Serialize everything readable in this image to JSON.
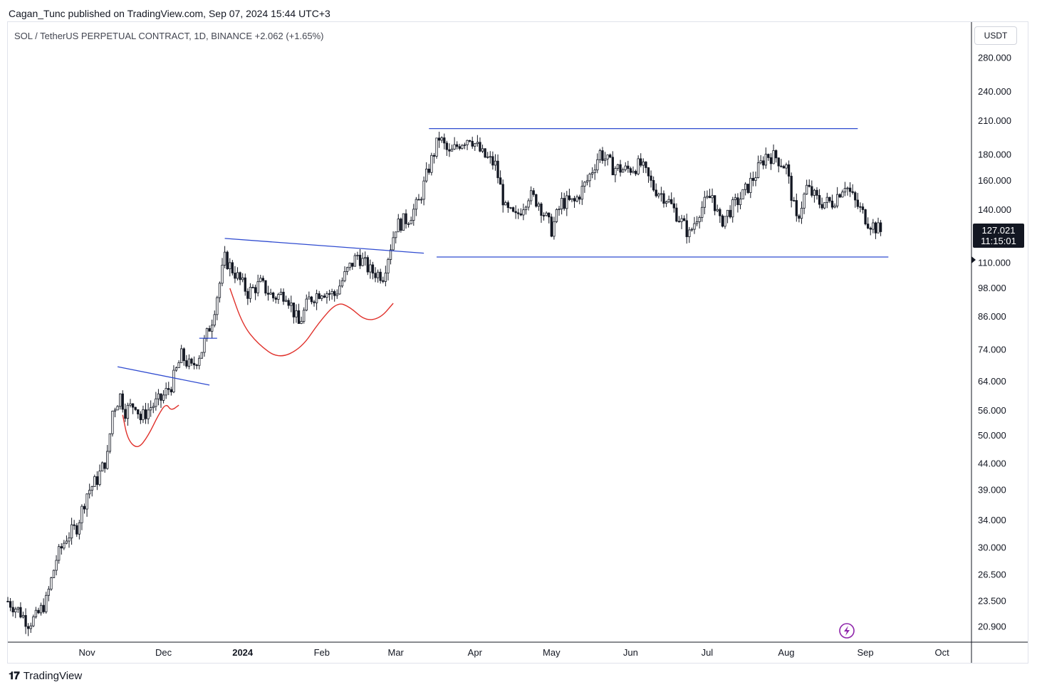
{
  "header": {
    "published": "Cagan_Tunc published on TradingView.com, Sep 07, 2024 15:44 UTC+3",
    "symbol_line": "SOL / TetherUS PERPETUAL CONTRACT, 1D, BINANCE  +2.062 (+1.65%)"
  },
  "footer": {
    "logo": "𝟏𝟕",
    "brand": "TradingView"
  },
  "chart_data": {
    "type": "candlestick",
    "title": "SOL / TetherUS PERPETUAL CONTRACT, 1D, BINANCE",
    "unit": "USDT",
    "y_scale": "log",
    "ylim": [
      19.5,
      330
    ],
    "y_ticks": [
      "280.000",
      "240.000",
      "210.000",
      "180.000",
      "160.000",
      "140.000",
      "110.000",
      "98.000",
      "86.000",
      "74.000",
      "64.000",
      "56.000",
      "50.000",
      "44.000",
      "39.000",
      "34.000",
      "30.000",
      "26.500",
      "23.500",
      "20.900"
    ],
    "x_ticks": [
      {
        "label": "Nov",
        "bold": false
      },
      {
        "label": "Dec",
        "bold": false
      },
      {
        "label": "2024",
        "bold": true
      },
      {
        "label": "Feb",
        "bold": false
      },
      {
        "label": "Mar",
        "bold": false
      },
      {
        "label": "Apr",
        "bold": false
      },
      {
        "label": "May",
        "bold": false
      },
      {
        "label": "Jun",
        "bold": false
      },
      {
        "label": "Jul",
        "bold": false
      },
      {
        "label": "Aug",
        "bold": false
      },
      {
        "label": "Sep",
        "bold": false
      },
      {
        "label": "Oct",
        "bold": false
      }
    ],
    "date_range": [
      "2023-10-01",
      "2024-10-12"
    ],
    "last_price": "127.021",
    "countdown": "11:15:01",
    "anchors": [
      [
        "2023-10-01",
        23.5
      ],
      [
        "2023-10-05",
        22.6
      ],
      [
        "2023-10-09",
        21.3
      ],
      [
        "2023-10-12",
        21.8
      ],
      [
        "2023-10-16",
        23.5
      ],
      [
        "2023-10-20",
        28.5
      ],
      [
        "2023-10-24",
        31.5
      ],
      [
        "2023-10-28",
        33.0
      ],
      [
        "2023-11-01",
        38.5
      ],
      [
        "2023-11-05",
        41.0
      ],
      [
        "2023-11-09",
        45.5
      ],
      [
        "2023-11-11",
        56.0
      ],
      [
        "2023-11-14",
        60.0
      ],
      [
        "2023-11-16",
        56.0
      ],
      [
        "2023-11-20",
        58.0
      ],
      [
        "2023-11-22",
        54.0
      ],
      [
        "2023-11-26",
        57.0
      ],
      [
        "2023-11-30",
        59.0
      ],
      [
        "2023-12-04",
        63.0
      ],
      [
        "2023-12-08",
        72.0
      ],
      [
        "2023-12-12",
        68.0
      ],
      [
        "2023-12-16",
        74.0
      ],
      [
        "2023-12-20",
        85.0
      ],
      [
        "2023-12-25",
        112.0
      ],
      [
        "2023-12-29",
        105.0
      ],
      [
        "2024-01-03",
        96.0
      ],
      [
        "2024-01-08",
        100.0
      ],
      [
        "2024-01-13",
        94.0
      ],
      [
        "2024-01-18",
        96.0
      ],
      [
        "2024-01-23",
        83.0
      ],
      [
        "2024-01-27",
        93.0
      ],
      [
        "2024-02-01",
        97.0
      ],
      [
        "2024-02-06",
        95.0
      ],
      [
        "2024-02-11",
        106.0
      ],
      [
        "2024-02-15",
        114.0
      ],
      [
        "2024-02-20",
        106.0
      ],
      [
        "2024-02-25",
        104.0
      ],
      [
        "2024-03-01",
        130.0
      ],
      [
        "2024-03-06",
        135.0
      ],
      [
        "2024-03-10",
        145.0
      ],
      [
        "2024-03-14",
        170.0
      ],
      [
        "2024-03-18",
        195.0
      ],
      [
        "2024-03-22",
        180.0
      ],
      [
        "2024-03-26",
        190.0
      ],
      [
        "2024-03-30",
        196.0
      ],
      [
        "2024-04-04",
        180.0
      ],
      [
        "2024-04-09",
        172.0
      ],
      [
        "2024-04-13",
        140.0
      ],
      [
        "2024-04-17",
        135.0
      ],
      [
        "2024-04-22",
        150.0
      ],
      [
        "2024-04-26",
        145.0
      ],
      [
        "2024-05-01",
        128.0
      ],
      [
        "2024-05-05",
        145.0
      ],
      [
        "2024-05-10",
        145.0
      ],
      [
        "2024-05-15",
        160.0
      ],
      [
        "2024-05-20",
        182.0
      ],
      [
        "2024-05-25",
        170.0
      ],
      [
        "2024-05-30",
        168.0
      ],
      [
        "2024-06-05",
        172.0
      ],
      [
        "2024-06-10",
        155.0
      ],
      [
        "2024-06-15",
        148.0
      ],
      [
        "2024-06-20",
        135.0
      ],
      [
        "2024-06-24",
        125.0
      ],
      [
        "2024-06-28",
        140.0
      ],
      [
        "2024-07-03",
        150.0
      ],
      [
        "2024-07-06",
        132.0
      ],
      [
        "2024-07-10",
        140.0
      ],
      [
        "2024-07-15",
        150.0
      ],
      [
        "2024-07-20",
        165.0
      ],
      [
        "2024-07-24",
        180.0
      ],
      [
        "2024-07-28",
        178.0
      ],
      [
        "2024-08-01",
        170.0
      ],
      [
        "2024-08-05",
        133.0
      ],
      [
        "2024-08-09",
        155.0
      ],
      [
        "2024-08-14",
        145.0
      ],
      [
        "2024-08-19",
        145.0
      ],
      [
        "2024-08-24",
        158.0
      ],
      [
        "2024-08-28",
        145.0
      ],
      [
        "2024-09-02",
        133.0
      ],
      [
        "2024-09-07",
        127.0
      ]
    ],
    "trend_lines": [
      {
        "from": [
          "2023-11-13",
          68.5
        ],
        "to": [
          "2023-12-19",
          63.0
        ],
        "color": "#2f4bd0"
      },
      {
        "from": [
          "2023-12-15",
          78.0
        ],
        "to": [
          "2023-12-22",
          78.0
        ],
        "color": "#2f4bd0"
      },
      {
        "from": [
          "2023-12-25",
          123.0
        ],
        "to": [
          "2024-03-12",
          115.0
        ],
        "color": "#2f4bd0"
      },
      {
        "from": [
          "2024-03-14",
          203.0
        ],
        "to": [
          "2024-08-29",
          203.0
        ],
        "color": "#2f4bd0"
      },
      {
        "from": [
          "2024-03-17",
          113.0
        ],
        "to": [
          "2024-09-10",
          113.0
        ],
        "color": "#2f4bd0"
      }
    ],
    "curves": [
      {
        "color": "#e0302a",
        "points": [
          [
            "2023-11-15",
            55.0
          ],
          [
            "2023-11-17",
            49.0
          ],
          [
            "2023-11-21",
            47.0
          ],
          [
            "2023-11-25",
            50.0
          ],
          [
            "2023-11-29",
            55.0
          ],
          [
            "2023-12-02",
            58.0
          ],
          [
            "2023-12-04",
            56.0
          ],
          [
            "2023-12-07",
            57.5
          ]
        ]
      },
      {
        "color": "#e0302a",
        "points": [
          [
            "2023-12-27",
            98.0
          ],
          [
            "2024-01-01",
            83.0
          ],
          [
            "2024-01-07",
            76.0
          ],
          [
            "2024-01-15",
            71.0
          ],
          [
            "2024-01-24",
            74.5
          ],
          [
            "2024-01-31",
            84.0
          ],
          [
            "2024-02-07",
            92.0
          ],
          [
            "2024-02-12",
            90.0
          ],
          [
            "2024-02-18",
            84.5
          ],
          [
            "2024-02-24",
            85.5
          ],
          [
            "2024-02-29",
            91.5
          ]
        ]
      }
    ]
  }
}
